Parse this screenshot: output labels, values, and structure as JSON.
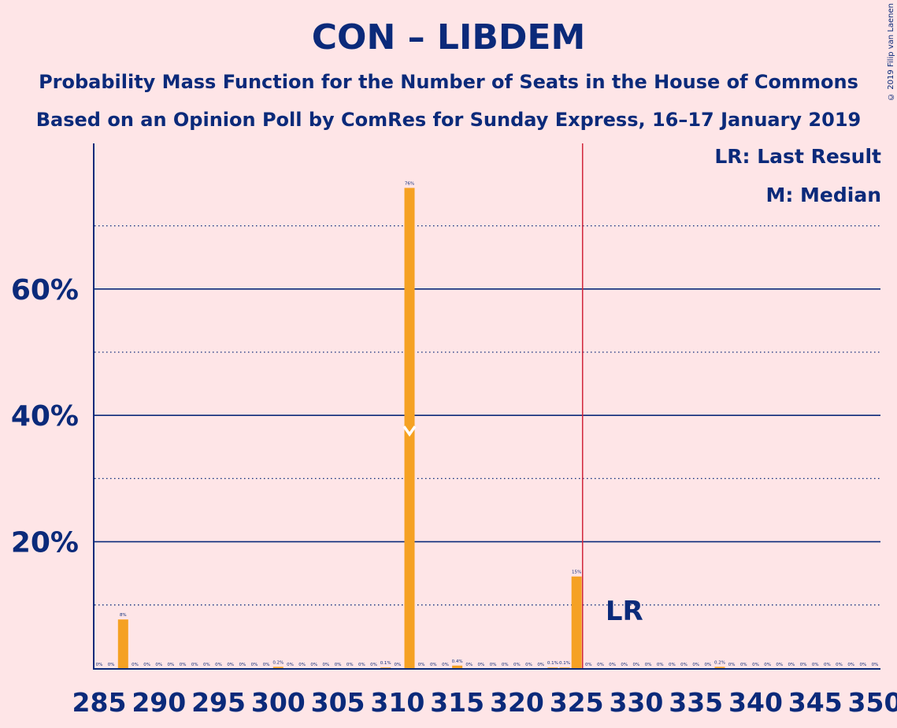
{
  "title": "CON – LIBDEM",
  "subtitle_1": "Probability Mass Function for the Number of Seats in the House of Commons",
  "subtitle_2": "Based on an Opinion Poll by ComRes for Sunday Express, 16–17 January 2019",
  "copyright": "© 2019 Filip van Laenen",
  "legend": {
    "last_result": "LR: Last Result",
    "median": "M: Median"
  },
  "colors": {
    "background": "#FEE5E7",
    "text": "#0B2A7A",
    "bar": "#F5A123",
    "majority_line": "#D1253A"
  },
  "chart_data": {
    "type": "bar",
    "x_ticks": [
      285,
      290,
      295,
      300,
      305,
      310,
      315,
      320,
      325,
      330,
      335,
      340,
      345,
      350
    ],
    "x_tick_labels": [
      "285",
      "290",
      "295",
      "300",
      "305",
      "310",
      "315",
      "320",
      "325",
      "330",
      "335",
      "340",
      "345",
      "350"
    ],
    "y_ticks": [
      20,
      40,
      60
    ],
    "y_tick_labels": [
      "20%",
      "40%",
      "60%"
    ],
    "xlim": [
      285,
      350
    ],
    "ylim": [
      0,
      83
    ],
    "grid": "solid at 20/40/60, dotted at 10/30/50/70",
    "majority_seat": 325.5,
    "median_seat": 311,
    "median_marker_value": 37,
    "last_result_seat": 329,
    "last_result_label": "LR",
    "bars": [
      {
        "seat": 285,
        "value": 0,
        "label": "0%"
      },
      {
        "seat": 286,
        "value": 0,
        "label": "0%"
      },
      {
        "seat": 287,
        "value": 7.7,
        "label": "8%"
      },
      {
        "seat": 288,
        "value": 0,
        "label": "0%"
      },
      {
        "seat": 289,
        "value": 0,
        "label": "0%"
      },
      {
        "seat": 290,
        "value": 0,
        "label": "0%"
      },
      {
        "seat": 291,
        "value": 0,
        "label": "0%"
      },
      {
        "seat": 292,
        "value": 0,
        "label": "0%"
      },
      {
        "seat": 293,
        "value": 0,
        "label": "0%"
      },
      {
        "seat": 294,
        "value": 0,
        "label": "0%"
      },
      {
        "seat": 295,
        "value": 0,
        "label": "0%"
      },
      {
        "seat": 296,
        "value": 0,
        "label": "0%"
      },
      {
        "seat": 297,
        "value": 0,
        "label": "0%"
      },
      {
        "seat": 298,
        "value": 0,
        "label": "0%"
      },
      {
        "seat": 299,
        "value": 0,
        "label": "0%"
      },
      {
        "seat": 300,
        "value": 0.2,
        "label": "0.2%"
      },
      {
        "seat": 301,
        "value": 0,
        "label": "0%"
      },
      {
        "seat": 302,
        "value": 0,
        "label": "0%"
      },
      {
        "seat": 303,
        "value": 0,
        "label": "0%"
      },
      {
        "seat": 304,
        "value": 0,
        "label": "0%"
      },
      {
        "seat": 305,
        "value": 0,
        "label": "0%"
      },
      {
        "seat": 306,
        "value": 0,
        "label": "0%"
      },
      {
        "seat": 307,
        "value": 0,
        "label": "0%"
      },
      {
        "seat": 308,
        "value": 0,
        "label": "0%"
      },
      {
        "seat": 309,
        "value": 0.1,
        "label": "0.1%"
      },
      {
        "seat": 310,
        "value": 0,
        "label": "0%"
      },
      {
        "seat": 311,
        "value": 76,
        "label": "76%"
      },
      {
        "seat": 312,
        "value": 0,
        "label": "0%"
      },
      {
        "seat": 313,
        "value": 0,
        "label": "0%"
      },
      {
        "seat": 314,
        "value": 0,
        "label": "0%"
      },
      {
        "seat": 315,
        "value": 0.4,
        "label": "0.4%"
      },
      {
        "seat": 316,
        "value": 0,
        "label": "0%"
      },
      {
        "seat": 317,
        "value": 0,
        "label": "0%"
      },
      {
        "seat": 318,
        "value": 0,
        "label": "0%"
      },
      {
        "seat": 319,
        "value": 0,
        "label": "0%"
      },
      {
        "seat": 320,
        "value": 0,
        "label": "0%"
      },
      {
        "seat": 321,
        "value": 0,
        "label": "0%"
      },
      {
        "seat": 322,
        "value": 0,
        "label": "0%"
      },
      {
        "seat": 323,
        "value": 0.1,
        "label": "0.1%"
      },
      {
        "seat": 324,
        "value": 0.1,
        "label": "0.1%"
      },
      {
        "seat": 325,
        "value": 14.5,
        "label": "15%"
      },
      {
        "seat": 326,
        "value": 0,
        "label": "0%"
      },
      {
        "seat": 327,
        "value": 0,
        "label": "0%"
      },
      {
        "seat": 328,
        "value": 0,
        "label": "0%"
      },
      {
        "seat": 329,
        "value": 0,
        "label": "0%"
      },
      {
        "seat": 330,
        "value": 0,
        "label": "0%"
      },
      {
        "seat": 331,
        "value": 0,
        "label": "0%"
      },
      {
        "seat": 332,
        "value": 0,
        "label": "0%"
      },
      {
        "seat": 333,
        "value": 0,
        "label": "0%"
      },
      {
        "seat": 334,
        "value": 0,
        "label": "0%"
      },
      {
        "seat": 335,
        "value": 0,
        "label": "0%"
      },
      {
        "seat": 336,
        "value": 0,
        "label": "0%"
      },
      {
        "seat": 337,
        "value": 0.2,
        "label": "0.2%"
      },
      {
        "seat": 338,
        "value": 0,
        "label": "0%"
      },
      {
        "seat": 339,
        "value": 0,
        "label": "0%"
      },
      {
        "seat": 340,
        "value": 0,
        "label": "0%"
      },
      {
        "seat": 341,
        "value": 0,
        "label": "0%"
      },
      {
        "seat": 342,
        "value": 0,
        "label": "0%"
      },
      {
        "seat": 343,
        "value": 0,
        "label": "0%"
      },
      {
        "seat": 344,
        "value": 0,
        "label": "0%"
      },
      {
        "seat": 345,
        "value": 0,
        "label": "0%"
      },
      {
        "seat": 346,
        "value": 0,
        "label": "0%"
      },
      {
        "seat": 347,
        "value": 0,
        "label": "0%"
      },
      {
        "seat": 348,
        "value": 0,
        "label": "0%"
      },
      {
        "seat": 349,
        "value": 0,
        "label": "0%"
      },
      {
        "seat": 350,
        "value": 0,
        "label": "0%"
      }
    ]
  }
}
